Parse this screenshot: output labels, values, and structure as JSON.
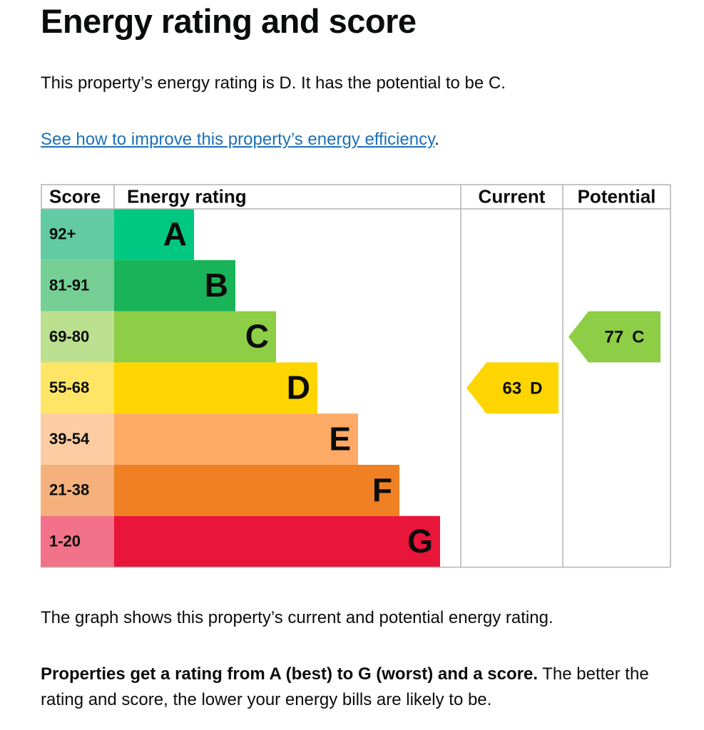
{
  "header": {
    "title": "Energy rating and score"
  },
  "intro": "This property’s energy rating is D. It has the potential to be C.",
  "improve": {
    "link": "See how to improve this property’s energy efficiency",
    "after": "."
  },
  "graph": {
    "headers": [
      "Score",
      "Energy rating",
      "Current",
      "Potential"
    ],
    "bands": [
      {
        "score": "92+",
        "letter": "A",
        "color": "#00c781",
        "score_color": "#63cba4"
      },
      {
        "score": "81-91",
        "letter": "B",
        "color": "#19b459",
        "score_color": "#75cf95"
      },
      {
        "score": "69-80",
        "letter": "C",
        "color": "#8dce46",
        "score_color": "#bbe190"
      },
      {
        "score": "55-68",
        "letter": "D",
        "color": "#ffd500",
        "score_color": "#ffe566"
      },
      {
        "score": "39-54",
        "letter": "E",
        "color": "#fcaa65",
        "score_color": "#fdcca3"
      },
      {
        "score": "21-38",
        "letter": "F",
        "color": "#ef8023",
        "score_color": "#f5b07b"
      },
      {
        "score": "1-20",
        "letter": "G",
        "color": "#e9153b",
        "score_color": "#f27389"
      }
    ],
    "current": {
      "score": 63,
      "letter": "D"
    },
    "potential": {
      "score": 77,
      "letter": "C"
    }
  },
  "summary": "The graph shows this property’s current and potential energy rating.",
  "explain": {
    "bold": "Properties get a rating from A (best) to G (worst) and a score.",
    "text": "The better the rating and score, the lower your energy bills are likely to be."
  }
}
